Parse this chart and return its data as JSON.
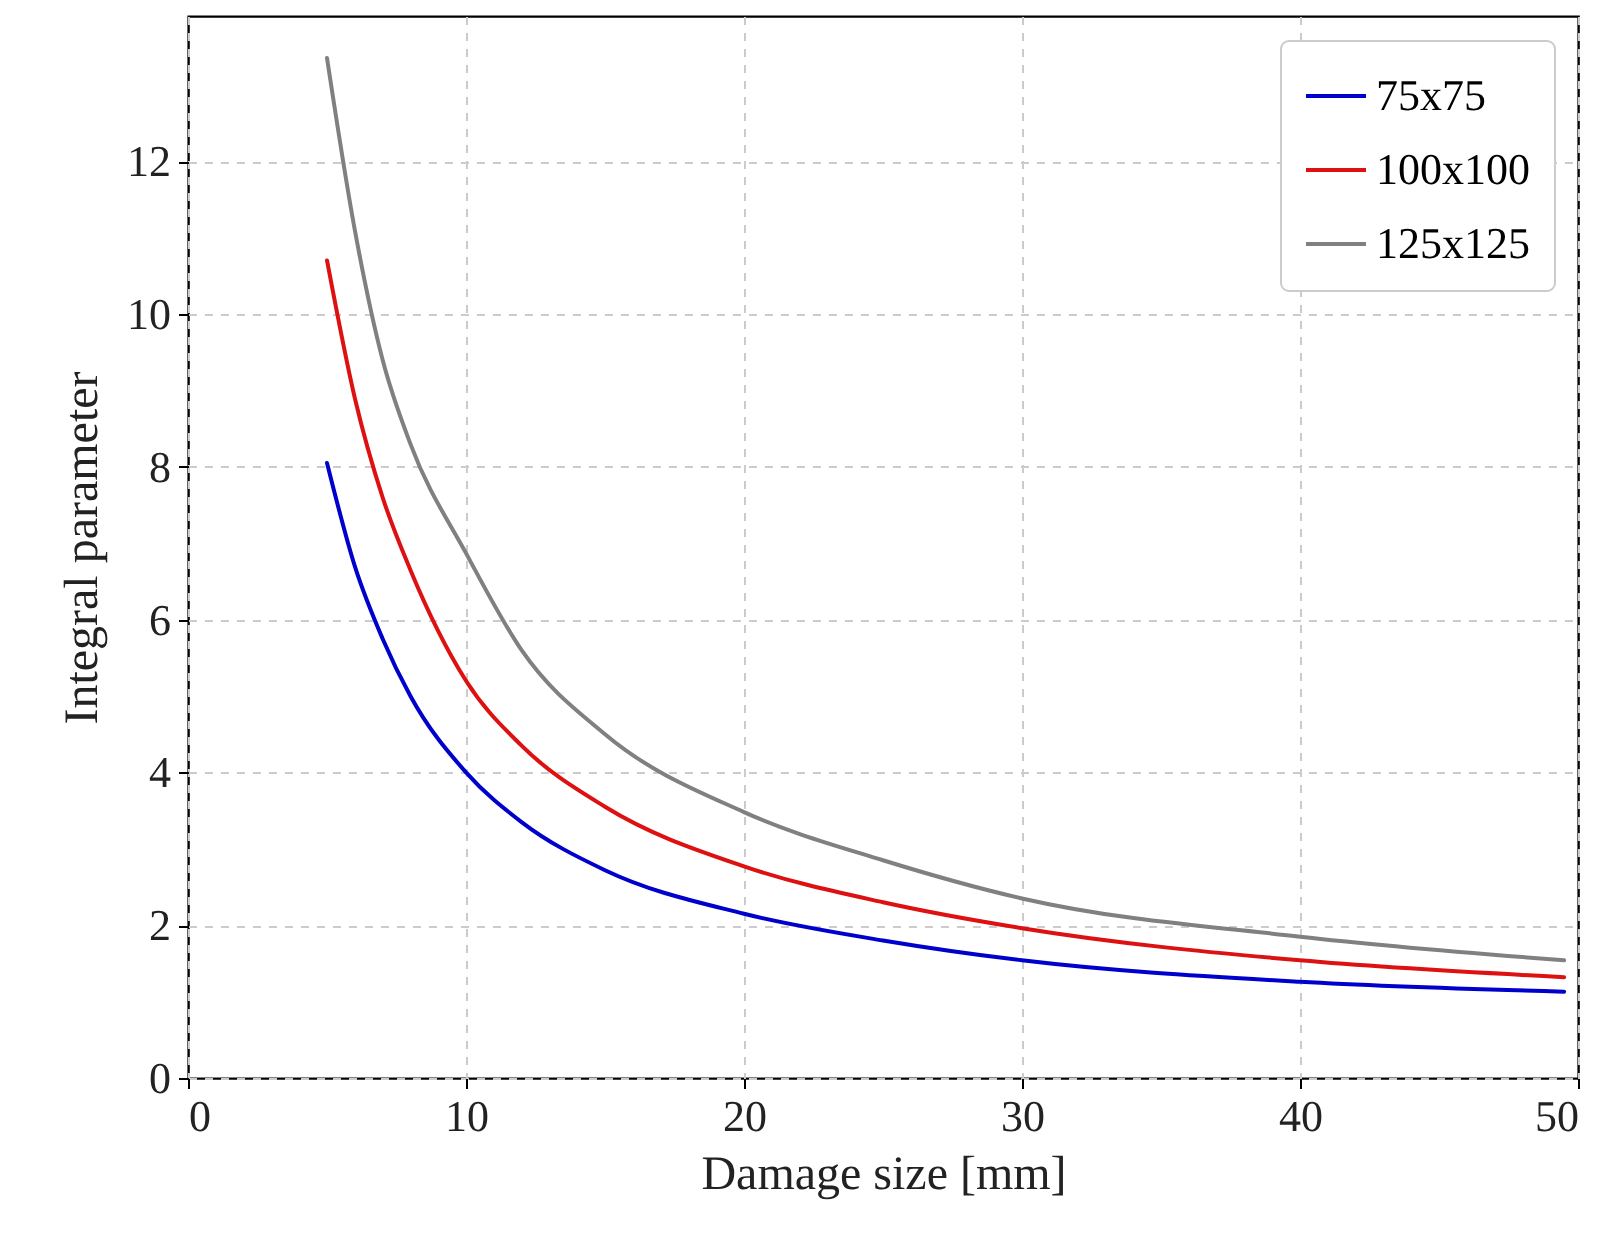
{
  "chart_data": {
    "type": "line",
    "xlabel": "Damage size [mm]",
    "ylabel": "Integral parameter",
    "x": [
      5,
      6,
      7,
      8,
      10,
      12,
      15,
      20,
      25,
      30,
      40,
      49.5
    ],
    "series": [
      {
        "name": "75x75",
        "color": "#0000cc",
        "values": [
          8.05,
          6.7,
          5.75,
          5.0,
          4.0,
          3.35,
          2.72,
          2.15,
          1.8,
          1.54,
          1.26,
          1.13
        ]
      },
      {
        "name": "100x100",
        "color": "#dd1111",
        "values": [
          10.7,
          8.9,
          7.6,
          6.65,
          5.2,
          4.35,
          3.55,
          2.77,
          2.3,
          1.96,
          1.54,
          1.32
        ]
      },
      {
        "name": "125x125",
        "color": "#808080",
        "values": [
          13.35,
          11.1,
          9.4,
          8.3,
          6.87,
          5.6,
          4.5,
          3.48,
          2.85,
          2.35,
          1.85,
          1.54
        ]
      }
    ],
    "xlim": [
      0,
      50
    ],
    "xticks": [
      0,
      10,
      20,
      30,
      40,
      50
    ],
    "ylim": [
      0,
      13.9
    ],
    "yticks": [
      0,
      2,
      4,
      6,
      8,
      10,
      12
    ],
    "grid": true,
    "legend": "top right",
    "marker": "none",
    "line_style": "solid"
  }
}
